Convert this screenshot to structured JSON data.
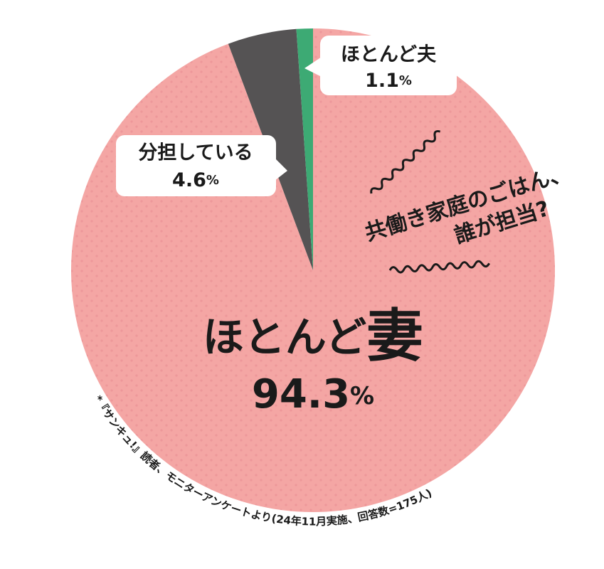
{
  "chart_data": {
    "type": "pie",
    "title": [
      "共働き家庭のごはん、",
      "誰が担当?"
    ],
    "categories": [
      "ほとんど妻",
      "分担している",
      "ほとんど夫"
    ],
    "values": [
      94.3,
      4.6,
      1.1
    ],
    "value_labels": [
      "94.3%",
      "4.6%",
      "1.1%"
    ],
    "colors": [
      "#f4a6a4",
      "#555354",
      "#3daa74"
    ],
    "note": "*『サンキュ!』読者、モニターアンケートより(24年11月実施、回答数=175人)"
  }
}
